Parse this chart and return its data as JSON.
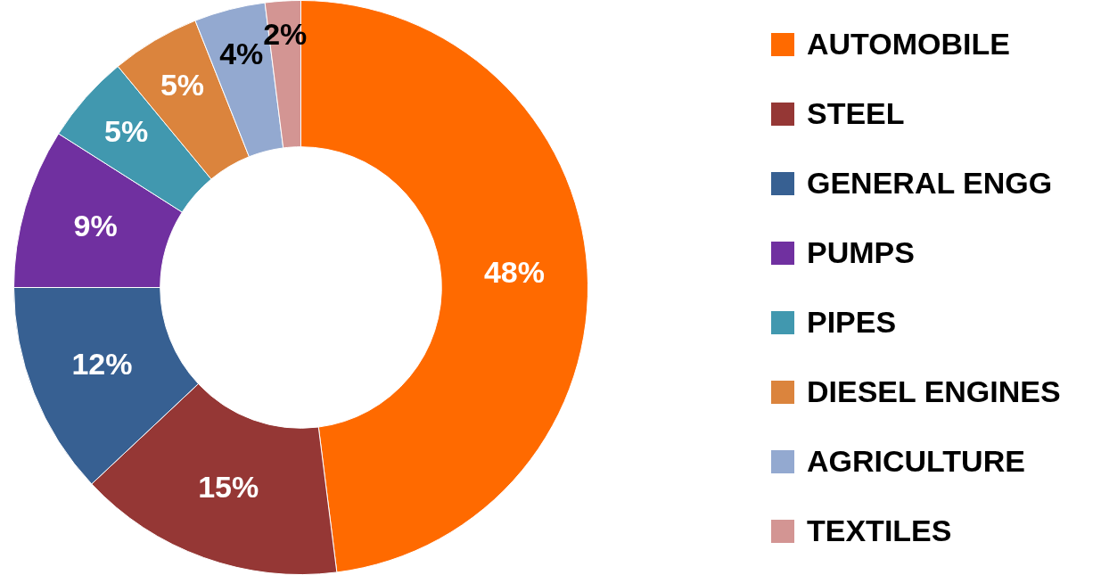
{
  "chart_data": {
    "type": "donut",
    "categories": [
      "AUTOMOBILE",
      "STEEL",
      "GENERAL ENGG",
      "PUMPS",
      "PIPES",
      "DIESEL ENGINES",
      "AGRICULTURE",
      "TEXTILES"
    ],
    "values": [
      48,
      15,
      12,
      9,
      5,
      5,
      4,
      2
    ],
    "colors": [
      "#ff6a00",
      "#953735",
      "#376092",
      "#7030a0",
      "#4198af",
      "#db843d",
      "#93a9d0",
      "#d39593"
    ],
    "value_labels": [
      "48%",
      "15%",
      "12%",
      "9%",
      "5%",
      "5%",
      "4%",
      "2%"
    ],
    "legend": "right"
  }
}
